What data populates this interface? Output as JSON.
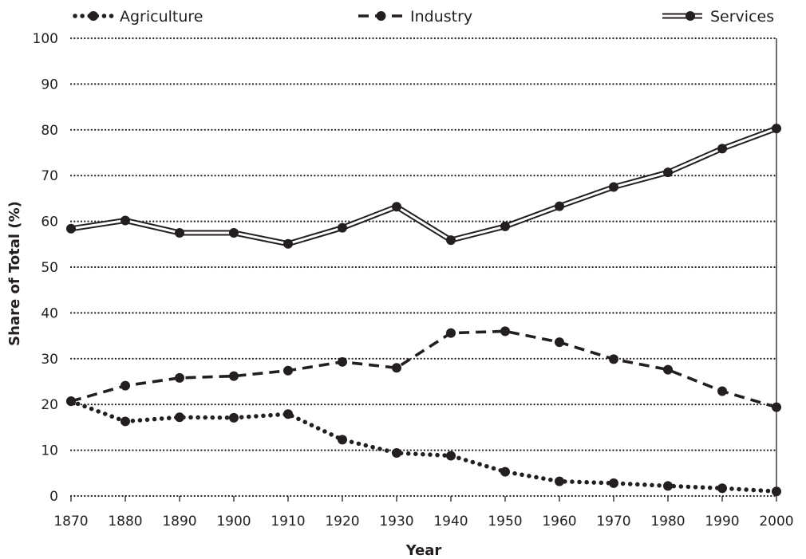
{
  "chart_data": {
    "type": "line",
    "title": "",
    "xlabel": "Year",
    "ylabel": "Share of Total (%)",
    "x": [
      1870,
      1880,
      1890,
      1900,
      1910,
      1920,
      1930,
      1940,
      1950,
      1960,
      1970,
      1980,
      1990,
      2000
    ],
    "xticks": [
      "1870",
      "1880",
      "1890",
      "1900",
      "1910",
      "1920",
      "1930",
      "1940",
      "1950",
      "1960",
      "1970",
      "1980",
      "1990",
      "2000"
    ],
    "xlim": [
      1870,
      2000
    ],
    "ylim": [
      0,
      100
    ],
    "yticks": [
      "0",
      "10",
      "20",
      "30",
      "40",
      "50",
      "60",
      "70",
      "80",
      "90",
      "100"
    ],
    "grid": "horizontal dotted",
    "legend_position": "top",
    "series": [
      {
        "name": "Agriculture",
        "line_style": "dotted",
        "values": [
          20.7,
          16.3,
          17.2,
          17.1,
          17.9,
          12.3,
          9.4,
          8.8,
          5.3,
          3.2,
          2.8,
          2.2,
          1.7,
          1.0
        ]
      },
      {
        "name": "Industry",
        "line_style": "dashed",
        "values": [
          20.7,
          24.1,
          25.8,
          26.2,
          27.4,
          29.3,
          28.0,
          35.6,
          36.0,
          33.6,
          29.9,
          27.6,
          22.9,
          19.4
        ]
      },
      {
        "name": "Services",
        "line_style": "double",
        "values": [
          58.4,
          60.2,
          57.5,
          57.5,
          55.1,
          58.6,
          63.2,
          55.9,
          58.9,
          63.3,
          67.5,
          70.7,
          75.9,
          80.3
        ]
      }
    ],
    "colors": {
      "ink": "#231f20",
      "background": "#ffffff"
    }
  }
}
